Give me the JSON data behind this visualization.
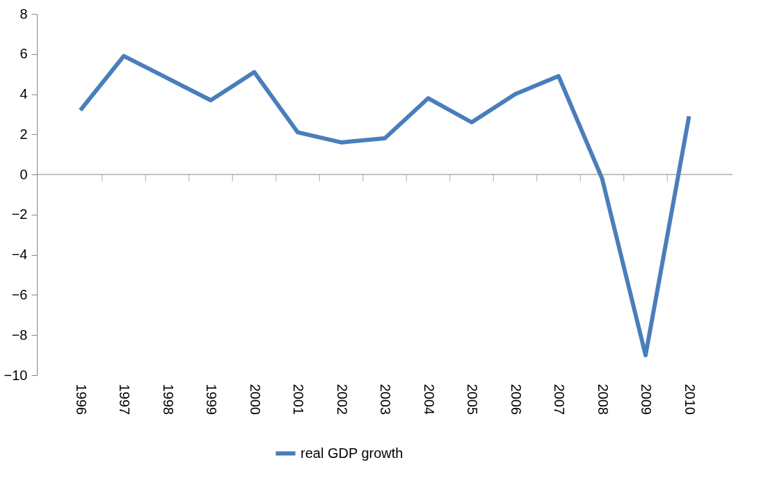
{
  "chart_data": {
    "type": "line",
    "categories": [
      "1996",
      "1997",
      "1998",
      "1999",
      "2000",
      "2001",
      "2002",
      "2003",
      "2004",
      "2005",
      "2006",
      "2007",
      "2008",
      "2009",
      "2010"
    ],
    "series": [
      {
        "name": "real GDP growth",
        "color": "#4a7ebb",
        "values": [
          3.2,
          5.9,
          4.8,
          3.7,
          5.1,
          2.1,
          1.6,
          1.8,
          3.8,
          2.6,
          4.0,
          4.9,
          -0.2,
          -9.0,
          2.9
        ]
      }
    ],
    "ylim": [
      -10,
      8
    ],
    "yticks": [
      -10,
      -8,
      -6,
      -4,
      -2,
      0,
      2,
      4,
      6,
      8
    ],
    "legend": "bottom",
    "marker": "none",
    "line_style": "solid"
  }
}
